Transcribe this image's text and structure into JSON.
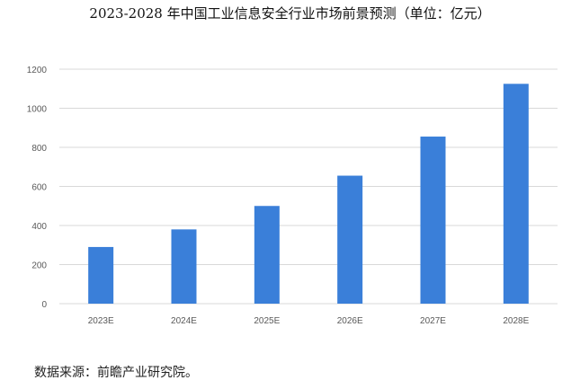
{
  "title": "2023-2028 年中国工业信息安全行业市场前景预测（单位：亿元）",
  "source": "数据来源：前瞻产业研究院。",
  "colors": {
    "bar": "#3a7fd9",
    "grid": "#d9d9d9",
    "axis_text": "#595959"
  },
  "chart_data": {
    "type": "bar",
    "title": "2023-2028 年中国工业信息安全行业市场前景预测（单位：亿元）",
    "categories": [
      "2023E",
      "2024E",
      "2025E",
      "2026E",
      "2027E",
      "2028E"
    ],
    "values": [
      290,
      380,
      500,
      655,
      855,
      1125
    ],
    "xlabel": "",
    "ylabel": "",
    "ylim": [
      0,
      1200
    ],
    "yticks": [
      0,
      200,
      400,
      600,
      800,
      1000,
      1200
    ],
    "grid": true,
    "legend": "none"
  }
}
